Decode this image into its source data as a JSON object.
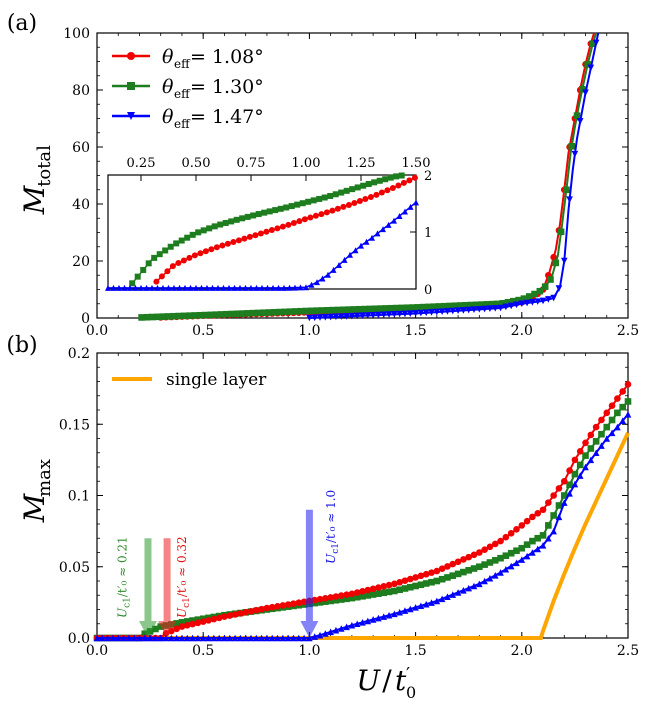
{
  "panel_a": {
    "label": "(a)",
    "ylabel": "M",
    "ylabel_sub": "total",
    "legend": [
      {
        "prefix": "θ",
        "sub": "eff",
        "value": " = 1.08°"
      },
      {
        "prefix": "θ",
        "sub": "eff",
        "value": " = 1.30°"
      },
      {
        "prefix": "θ",
        "sub": "eff",
        "value": " = 1.47°"
      }
    ]
  },
  "panel_b": {
    "label": "(b)",
    "ylabel": "M",
    "ylabel_sub": "max",
    "legend_single": "single layer",
    "annotations": [
      {
        "text": "U",
        "sub": "c1",
        "rest": "/t′₀ ≈ 0.21",
        "color": "#2e8b2e"
      },
      {
        "text": "U",
        "sub": "c1",
        "rest": "/t′₀ ≈ 0.32",
        "color": "#e01010"
      },
      {
        "text": "U",
        "sub": "c1",
        "rest": "/t′₀ ≈ 1.0",
        "color": "#1010e0"
      }
    ]
  },
  "xlabel": "U/t′₀",
  "colors": {
    "red": "#f00000",
    "green": "#1e7d1e",
    "blue": "#0000ff",
    "orange": "#ffa500"
  },
  "chart_data": [
    {
      "type": "line",
      "title": "",
      "xlabel": "U/t′₀",
      "ylabel": "M_total",
      "xlim": [
        0,
        2.5
      ],
      "ylim": [
        0,
        100
      ],
      "xticks": [
        "0.0",
        "0.5",
        "1.0",
        "1.5",
        "2.0",
        "2.5"
      ],
      "yticks": [
        "0",
        "20",
        "40",
        "60",
        "80",
        "100"
      ],
      "series": [
        {
          "name": "θeff = 1.08°",
          "marker": "circle",
          "color": "#f00000",
          "x": [
            0.3,
            0.5,
            1.0,
            1.5,
            1.9,
            2.0,
            2.05,
            2.1,
            2.13,
            2.16,
            2.18,
            2.2,
            2.22,
            2.24,
            2.26,
            2.28,
            2.3,
            2.32,
            2.34
          ],
          "y": [
            0.2,
            0.8,
            2.0,
            3.3,
            4.3,
            5.5,
            7,
            10,
            16,
            24,
            33,
            45,
            58,
            66,
            74,
            82,
            89,
            95,
            100
          ]
        },
        {
          "name": "θeff = 1.30°",
          "marker": "square",
          "color": "#1e7d1e",
          "x": [
            0.21,
            0.5,
            1.0,
            1.5,
            1.9,
            2.0,
            2.05,
            2.1,
            2.14,
            2.17,
            2.19,
            2.21,
            2.23,
            2.25,
            2.27,
            2.29,
            2.31,
            2.33,
            2.35
          ],
          "y": [
            0.2,
            1.0,
            2.5,
            3.7,
            5,
            6.5,
            8,
            10,
            14,
            22,
            33,
            45,
            58,
            67,
            75,
            82,
            89,
            95,
            100
          ]
        },
        {
          "name": "θeff = 1.47°",
          "marker": "triangle-down",
          "color": "#0000ff",
          "x": [
            1.0,
            1.5,
            1.9,
            2.0,
            2.1,
            2.15,
            2.18,
            2.2,
            2.22,
            2.24,
            2.26,
            2.28,
            2.3,
            2.32,
            2.34,
            2.36
          ],
          "y": [
            0.0,
            1.6,
            3.5,
            5,
            6,
            7,
            11,
            20,
            38,
            52,
            63,
            71,
            79,
            86,
            93,
            100
          ]
        }
      ]
    },
    {
      "type": "line",
      "title": "inset",
      "xlim": [
        0.1,
        1.5
      ],
      "ylim": [
        0,
        2
      ],
      "xticks": [
        "0.25",
        "0.50",
        "0.75",
        "1.00",
        "1.25",
        "1.50"
      ],
      "yticks": [
        "0",
        "1",
        "2"
      ],
      "series": [
        {
          "name": "θeff = 1.08°",
          "marker": "circle",
          "color": "#f00000",
          "x": [
            0.32,
            0.4,
            0.5,
            0.6,
            0.7,
            0.8,
            0.9,
            1.0,
            1.1,
            1.2,
            1.3,
            1.4,
            1.5
          ],
          "y": [
            0.13,
            0.42,
            0.6,
            0.74,
            0.86,
            0.98,
            1.1,
            1.23,
            1.35,
            1.48,
            1.62,
            1.78,
            1.96
          ]
        },
        {
          "name": "θeff = 1.30°",
          "marker": "square",
          "color": "#1e7d1e",
          "x": [
            0.21,
            0.3,
            0.4,
            0.5,
            0.6,
            0.7,
            0.8,
            0.9,
            1.0,
            1.1,
            1.2,
            1.3,
            1.4,
            1.45
          ],
          "y": [
            0.1,
            0.52,
            0.78,
            0.98,
            1.12,
            1.23,
            1.33,
            1.42,
            1.52,
            1.62,
            1.74,
            1.86,
            1.97,
            2.0
          ]
        },
        {
          "name": "θeff = 1.47°",
          "marker": "triangle-up",
          "color": "#0000ff",
          "x": [
            0.1,
            0.5,
            0.9,
            1.0,
            1.05,
            1.1,
            1.15,
            1.2,
            1.25,
            1.3,
            1.35,
            1.4,
            1.45,
            1.5
          ],
          "y": [
            0.02,
            0.02,
            0.02,
            0.03,
            0.12,
            0.25,
            0.42,
            0.6,
            0.76,
            0.9,
            1.05,
            1.2,
            1.36,
            1.52
          ]
        }
      ]
    },
    {
      "type": "line",
      "title": "",
      "xlabel": "U/t′₀",
      "ylabel": "M_max",
      "xlim": [
        0,
        2.5
      ],
      "ylim": [
        0,
        0.2
      ],
      "xticks": [
        "0.0",
        "0.5",
        "1.0",
        "1.5",
        "2.0",
        "2.5"
      ],
      "yticks": [
        "0.0",
        "0.05",
        "0.1",
        "0.15",
        "0.2"
      ],
      "series": [
        {
          "name": "θeff = 1.08°",
          "marker": "circle",
          "color": "#f00000",
          "x": [
            0.0,
            0.3,
            0.32,
            0.4,
            0.6,
            0.8,
            1.0,
            1.2,
            1.4,
            1.6,
            1.8,
            1.9,
            2.0,
            2.05,
            2.1,
            2.2,
            2.25,
            2.3,
            2.35,
            2.4,
            2.45,
            2.5
          ],
          "y": [
            0.0,
            0.0,
            0.003,
            0.008,
            0.015,
            0.021,
            0.026,
            0.031,
            0.038,
            0.047,
            0.06,
            0.068,
            0.079,
            0.085,
            0.09,
            0.11,
            0.125,
            0.137,
            0.148,
            0.158,
            0.168,
            0.178
          ]
        },
        {
          "name": "θeff = 1.30°",
          "marker": "square",
          "color": "#1e7d1e",
          "x": [
            0.0,
            0.2,
            0.21,
            0.3,
            0.4,
            0.6,
            0.8,
            1.0,
            1.2,
            1.4,
            1.6,
            1.8,
            1.9,
            2.0,
            2.05,
            2.1,
            2.2,
            2.25,
            2.3,
            2.35,
            2.4,
            2.45,
            2.5
          ],
          "y": [
            0.0,
            0.0,
            0.002,
            0.008,
            0.011,
            0.016,
            0.02,
            0.024,
            0.028,
            0.033,
            0.04,
            0.05,
            0.056,
            0.063,
            0.068,
            0.072,
            0.1,
            0.115,
            0.128,
            0.138,
            0.148,
            0.158,
            0.166
          ]
        },
        {
          "name": "θeff = 1.47°",
          "marker": "triangle-up",
          "color": "#0000ff",
          "x": [
            0.0,
            0.5,
            1.0,
            1.05,
            1.2,
            1.4,
            1.6,
            1.8,
            1.9,
            2.0,
            2.1,
            2.15,
            2.2,
            2.25,
            2.3,
            2.35,
            2.4,
            2.45,
            2.5
          ],
          "y": [
            0.0,
            0.0,
            0.0,
            0.002,
            0.009,
            0.017,
            0.026,
            0.038,
            0.046,
            0.055,
            0.065,
            0.075,
            0.095,
            0.108,
            0.12,
            0.13,
            0.14,
            0.148,
            0.157
          ]
        },
        {
          "name": "single layer",
          "marker": "none",
          "color": "#ffa500",
          "x": [
            0.0,
            2.09,
            2.1,
            2.15,
            2.2,
            2.25,
            2.3,
            2.35,
            2.4,
            2.45,
            2.5
          ],
          "y": [
            0.0,
            0.0,
            0.005,
            0.026,
            0.045,
            0.063,
            0.08,
            0.096,
            0.112,
            0.128,
            0.144
          ]
        }
      ]
    }
  ]
}
